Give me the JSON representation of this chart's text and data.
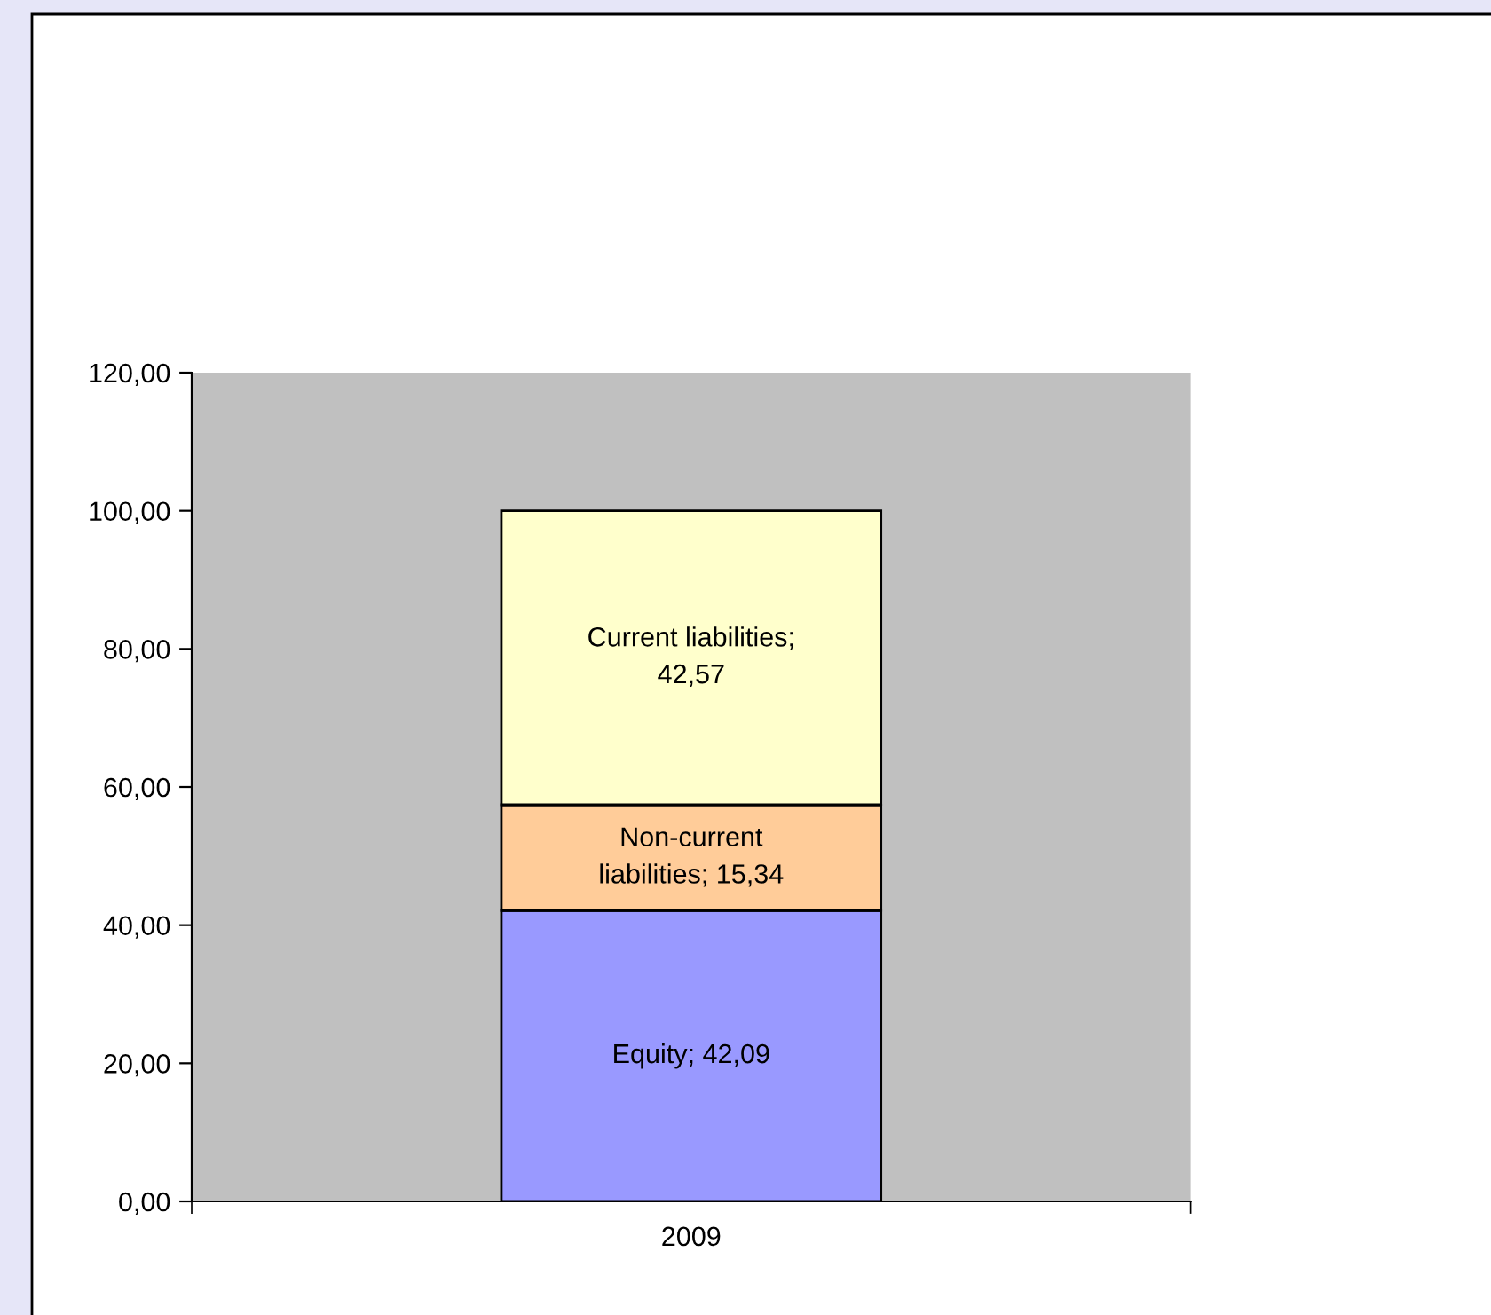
{
  "chart_data": {
    "type": "bar",
    "stacked": true,
    "categories": [
      "2009"
    ],
    "series": [
      {
        "color": "#9999ff",
        "values": [
          42.09
        ],
        "value_labels": [
          "Equity; 42,09"
        ]
      },
      {
        "color": "#ffcc99",
        "values": [
          15.34
        ],
        "value_labels": [
          "Non-current liabilities; 15,34"
        ]
      },
      {
        "color": "#ffffcc",
        "values": [
          42.57
        ],
        "value_labels": [
          "Current liabilities; 42,57"
        ]
      }
    ],
    "ylim": [
      0,
      120
    ],
    "yticks": [
      {
        "value": 0,
        "label": "0,00"
      },
      {
        "value": 20,
        "label": "20,00"
      },
      {
        "value": 40,
        "label": "40,00"
      },
      {
        "value": 60,
        "label": "60,00"
      },
      {
        "value": 80,
        "label": "80,00"
      },
      {
        "value": 100,
        "label": "100,00"
      },
      {
        "value": 120,
        "label": "120,00"
      }
    ]
  }
}
